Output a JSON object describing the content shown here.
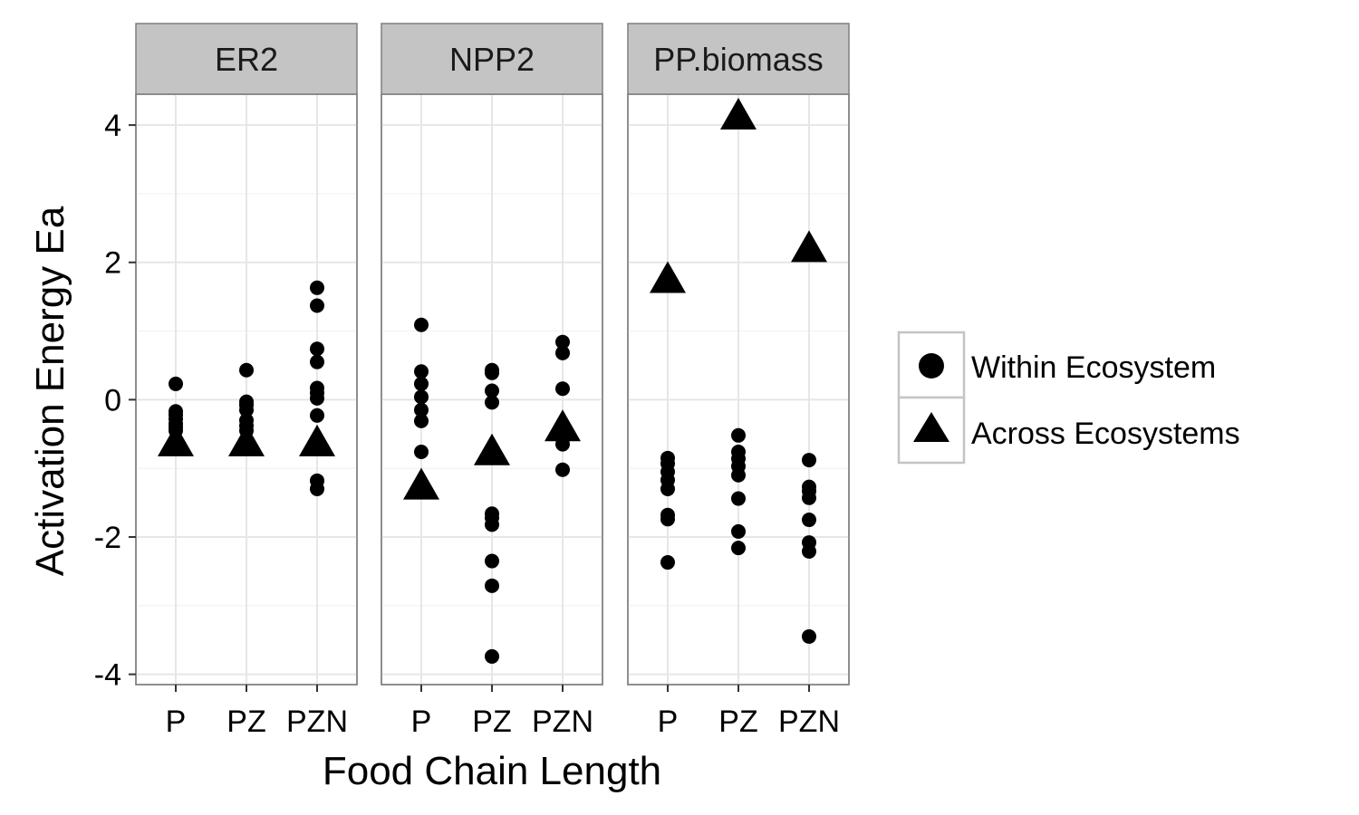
{
  "chart_data": {
    "type": "scatter",
    "xlabel": "Food Chain Length",
    "ylabel": "Activation Energy Ea",
    "categories": [
      "P",
      "PZ",
      "PZN"
    ],
    "ylim": [
      -4.15,
      4.45
    ],
    "yticks": [
      -4,
      -2,
      0,
      2,
      4
    ],
    "grid": true,
    "legend_position": "right",
    "legend": [
      {
        "label": "Within Ecosystem",
        "shape": "circle"
      },
      {
        "label": "Across Ecosystems",
        "shape": "triangle"
      }
    ],
    "panels": [
      {
        "title": "ER2",
        "within": {
          "P": [
            0.23,
            -0.17,
            -0.22,
            -0.28,
            -0.35,
            -0.4,
            -0.45
          ],
          "PZ": [
            0.43,
            -0.03,
            -0.08,
            -0.15,
            -0.3,
            -0.38,
            -0.45
          ],
          "PZN": [
            1.63,
            1.37,
            0.74,
            0.55,
            0.17,
            0.1,
            0.02,
            -0.23,
            -1.18,
            -1.3
          ]
        },
        "across": {
          "P": -0.64,
          "PZ": -0.64,
          "PZN": -0.64
        }
      },
      {
        "title": "NPP2",
        "within": {
          "P": [
            1.09,
            0.41,
            0.23,
            0.04,
            -0.15,
            -0.31,
            -0.76
          ],
          "PZ": [
            0.43,
            0.39,
            0.13,
            -0.04,
            -1.66,
            -1.72,
            -1.82,
            -2.35,
            -2.71,
            -3.74
          ],
          "PZN": [
            0.84,
            0.68,
            0.16,
            -0.57,
            -0.65,
            -1.02
          ]
        },
        "across": {
          "P": -1.27,
          "PZ": -0.77,
          "PZN": -0.42
        }
      },
      {
        "title": "PP.biomass",
        "within": {
          "P": [
            -0.85,
            -0.93,
            -1.05,
            -1.17,
            -1.3,
            -1.68,
            -1.74,
            -2.37
          ],
          "PZ": [
            -0.52,
            -0.76,
            -0.86,
            -0.97,
            -1.1,
            -1.44,
            -1.92,
            -2.16
          ],
          "PZN": [
            -0.88,
            -1.27,
            -1.33,
            -1.43,
            -1.75,
            -2.08,
            -2.21,
            -3.45
          ]
        },
        "across": {
          "P": 1.74,
          "PZ": 4.12,
          "PZN": 2.19
        }
      }
    ]
  }
}
